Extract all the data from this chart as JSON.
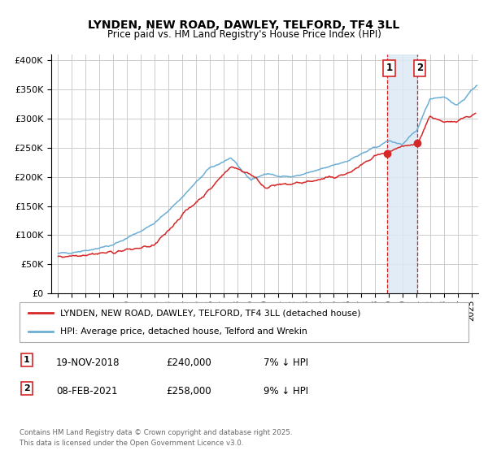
{
  "title": "LYNDEN, NEW ROAD, DAWLEY, TELFORD, TF4 3LL",
  "subtitle": "Price paid vs. HM Land Registry's House Price Index (HPI)",
  "legend_line1": "LYNDEN, NEW ROAD, DAWLEY, TELFORD, TF4 3LL (detached house)",
  "legend_line2": "HPI: Average price, detached house, Telford and Wrekin",
  "annotation_text": "Contains HM Land Registry data © Crown copyright and database right 2025.\nThis data is licensed under the Open Government Licence v3.0.",
  "table_rows": [
    {
      "num": "1",
      "date": "19-NOV-2018",
      "price": "£240,000",
      "hpi": "7% ↓ HPI"
    },
    {
      "num": "2",
      "date": "08-FEB-2021",
      "price": "£258,000",
      "hpi": "9% ↓ HPI"
    }
  ],
  "vline1_x": 2018.88,
  "vline2_x": 2021.1,
  "marker1_y": 240000,
  "marker2_y": 258000,
  "ylim": [
    0,
    410000
  ],
  "xlim": [
    1994.5,
    2025.5
  ],
  "hpi_color": "#6baed6",
  "price_color": "#d62728",
  "vline_color": "#d62728",
  "bg_color": "#ffffff",
  "grid_color": "#cccccc",
  "shaded_color": "#dce9f5",
  "yticks": [
    0,
    50000,
    100000,
    150000,
    200000,
    250000,
    300000,
    350000,
    400000
  ],
  "xticks": [
    1995,
    1996,
    1997,
    1998,
    1999,
    2000,
    2001,
    2002,
    2003,
    2004,
    2005,
    2006,
    2007,
    2008,
    2009,
    2010,
    2011,
    2012,
    2013,
    2014,
    2015,
    2016,
    2017,
    2018,
    2019,
    2020,
    2021,
    2022,
    2023,
    2024,
    2025
  ],
  "hpi_anchors_x": [
    1995,
    1997,
    1999,
    2002,
    2004,
    2006,
    2007.5,
    2009,
    2010,
    2012,
    2014,
    2016,
    2018,
    2019,
    2020,
    2021,
    2022,
    2023,
    2024,
    2025.4
  ],
  "hpi_anchors_y": [
    68000,
    74000,
    83000,
    120000,
    165000,
    215000,
    232000,
    195000,
    205000,
    200000,
    212000,
    228000,
    250000,
    262000,
    256000,
    278000,
    335000,
    338000,
    322000,
    358000
  ],
  "price_anchors_x": [
    1995,
    1997,
    1999,
    2002,
    2004,
    2006,
    2007.5,
    2009,
    2010,
    2012,
    2014,
    2016,
    2018,
    2018.88,
    2019.5,
    2021.1,
    2022,
    2023,
    2024,
    2025.3
  ],
  "price_anchors_y": [
    63000,
    67000,
    71000,
    82000,
    135000,
    178000,
    218000,
    205000,
    183000,
    188000,
    195000,
    205000,
    235000,
    240000,
    248000,
    258000,
    305000,
    292000,
    298000,
    308000
  ]
}
